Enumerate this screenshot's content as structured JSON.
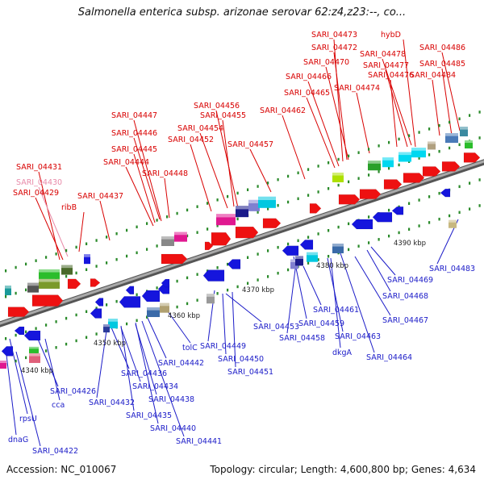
{
  "title": "Salmonella enterica subsp. arizonae serovar 62:z4,z23:--, co...",
  "footer": {
    "accession": "Accession: NC_010067",
    "topology": "Topology: circular; Length: 4,600,800 bp; Genes: 4,634"
  },
  "ruler": [
    "4340 kbp",
    "4350 kbp",
    "4360 kbp",
    "4370 kbp",
    "4380 kbp",
    "4390 kbp"
  ],
  "top_labels": [
    "SARI_04473",
    "hybD",
    "SARI_04486",
    "SARI_04472",
    "SARI_04478",
    "SARI_04470",
    "SARI_04477",
    "SARI_04485",
    "SARI_04466",
    "SARI_04476",
    "SARI_04484",
    "SARI_04474",
    "SARI_04465",
    "SARI_04456",
    "SARI_04462",
    "SARI_04455",
    "SARI_04447",
    "SARI_04454",
    "SARI_04446",
    "SARI_04452",
    "SARI_04457",
    "SARI_04445",
    "SARI_04444",
    "SARI_04448",
    "SARI_04431",
    "SARI_04430",
    "SARI_04429",
    "SARI_04437",
    "ribB"
  ],
  "bottom_labels": [
    "SARI_04483",
    "SARI_04469",
    "SARI_04468",
    "SARI_04461",
    "SARI_04467",
    "SARI_04459",
    "SARI_04453",
    "SARI_04458",
    "SARI_04463",
    "tolC",
    "SARI_04449",
    "dkgA",
    "SARI_04464",
    "SARI_04442",
    "SARI_04450",
    "SARI_04451",
    "SARI_04436",
    "SARI_04434",
    "SARI_04426",
    "SARI_04438",
    "SARI_04432",
    "cca",
    "SARI_04435",
    "rpsU",
    "SARI_04440",
    "SARI_04441",
    "dnaG",
    "SARI_04422"
  ],
  "colors": {
    "forward_gene": "#ee1111",
    "reverse_gene": "#1515dd",
    "backbone": "#7a7a7a",
    "tick": "#2a8a2a",
    "top_label": "#d80000",
    "bottom_label": "#1c1cc8"
  }
}
